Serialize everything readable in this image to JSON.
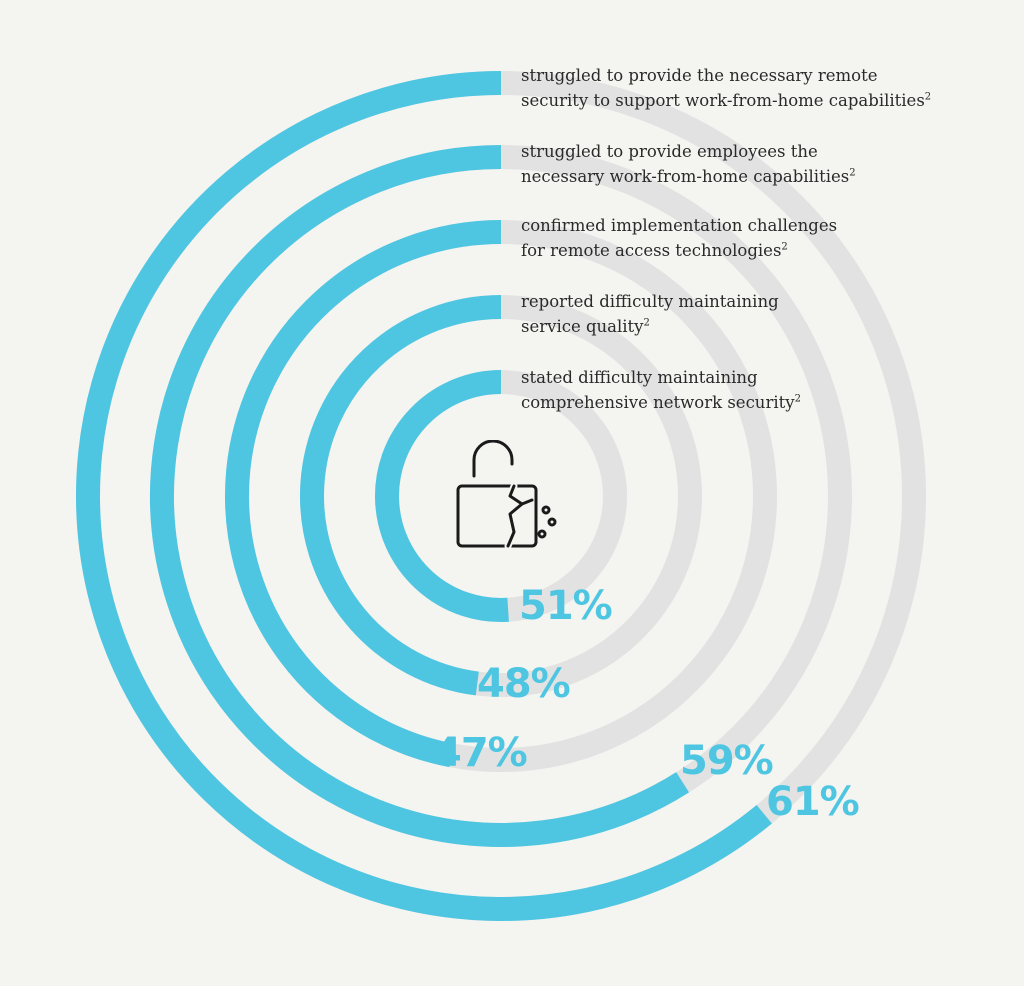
{
  "chart_data": {
    "type": "radial-bar",
    "max": 100,
    "colors": {
      "filled": "#4fc6e1",
      "track": "#e2e2e2"
    },
    "rings": [
      {
        "value": 61,
        "label": "61%",
        "text": "struggled to provide the necessary remote\nsecurity to support work-from-home capabilities",
        "footnote": "2"
      },
      {
        "value": 59,
        "label": "59%",
        "text": "struggled to provide employees the\nnecessary work-from-home capabilities",
        "footnote": "2"
      },
      {
        "value": 47,
        "label": "47%",
        "text": "confirmed implementation challenges\nfor remote access technologies",
        "footnote": "2"
      },
      {
        "value": 48,
        "label": "48%",
        "text": "reported difficulty maintaining\nservice quality",
        "footnote": "2"
      },
      {
        "value": 51,
        "label": "51%",
        "text": "stated difficulty maintaining\ncomprehensive network security",
        "footnote": "2"
      }
    ]
  },
  "center_icon": "broken-padlock-icon"
}
